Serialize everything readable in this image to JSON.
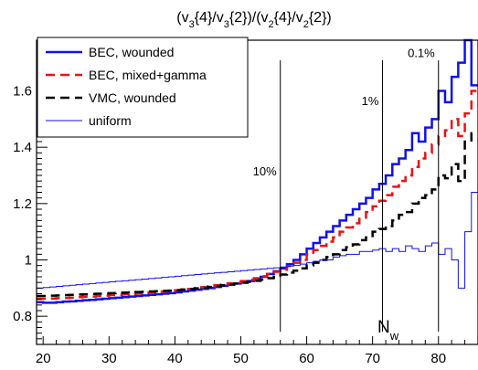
{
  "chart_data": {
    "type": "line",
    "title": {
      "base_open": "(v",
      "sub1": "3",
      "mid1": "{4}/v",
      "sub2": "3",
      "mid2": "{2})/(v",
      "sub3": "2",
      "mid3": "{4}/v",
      "sub4": "2",
      "end": "{2})"
    },
    "xlabel": {
      "base": "N",
      "sub": "w"
    },
    "ylabel": "",
    "xlim": [
      19,
      86
    ],
    "ylim": [
      0.7,
      1.78
    ],
    "x_ticks": [
      20,
      30,
      40,
      50,
      60,
      70,
      80
    ],
    "y_ticks": [
      0.8,
      1,
      1.2,
      1.4,
      1.6
    ],
    "grid": false,
    "legend_position": "top-left",
    "annotations": [
      {
        "text": "10%",
        "x": 56,
        "y_min": 0.745,
        "label_y": 1.3
      },
      {
        "text": "1%",
        "x": 71.5,
        "y_min": 0.745,
        "label_y": 1.55
      },
      {
        "text": "0.1%",
        "x": 80,
        "y_min": 0.745,
        "label_y": 1.72
      }
    ],
    "x_bins": [
      19,
      20,
      21,
      22,
      23,
      24,
      25,
      26,
      27,
      28,
      29,
      30,
      31,
      32,
      33,
      34,
      35,
      36,
      37,
      38,
      39,
      40,
      41,
      42,
      43,
      44,
      45,
      46,
      47,
      48,
      49,
      50,
      51,
      52,
      53,
      54,
      55,
      56,
      57,
      58,
      59,
      60,
      61,
      62,
      63,
      64,
      65,
      66,
      67,
      68,
      69,
      70,
      71,
      72,
      73,
      74,
      75,
      76,
      77,
      78,
      79,
      80,
      81,
      82,
      83,
      84,
      85,
      86
    ],
    "series": [
      {
        "name": "BEC, wounded",
        "color": "#1010ee",
        "dash": "solid",
        "width": 2.5,
        "values": [
          0.85,
          0.848,
          0.848,
          0.85,
          0.852,
          0.853,
          0.855,
          0.857,
          0.858,
          0.86,
          0.862,
          0.864,
          0.866,
          0.868,
          0.87,
          0.872,
          0.874,
          0.876,
          0.878,
          0.88,
          0.882,
          0.885,
          0.888,
          0.891,
          0.894,
          0.897,
          0.9,
          0.904,
          0.908,
          0.912,
          0.916,
          0.92,
          0.925,
          0.932,
          0.94,
          0.95,
          0.96,
          0.97,
          0.985,
          1.0,
          1.02,
          1.04,
          1.06,
          1.08,
          1.1,
          1.12,
          1.14,
          1.16,
          1.18,
          1.2,
          1.22,
          1.25,
          1.27,
          1.3,
          1.34,
          1.36,
          1.39,
          1.45,
          1.42,
          1.47,
          1.5,
          1.6,
          1.56,
          1.65,
          1.7,
          1.78,
          1.62,
          1.58
        ]
      },
      {
        "name": "BEC, mixed+gamma",
        "color": "#ee1010",
        "dash": "dashed",
        "width": 2.5,
        "values": [
          0.862,
          0.862,
          0.863,
          0.864,
          0.865,
          0.866,
          0.868,
          0.869,
          0.87,
          0.872,
          0.873,
          0.875,
          0.876,
          0.878,
          0.879,
          0.881,
          0.883,
          0.885,
          0.886,
          0.888,
          0.89,
          0.892,
          0.895,
          0.897,
          0.9,
          0.903,
          0.906,
          0.91,
          0.913,
          0.917,
          0.921,
          0.925,
          0.93,
          0.935,
          0.942,
          0.95,
          0.958,
          0.965,
          0.978,
          0.99,
          1.0,
          1.02,
          1.035,
          1.05,
          1.065,
          1.08,
          1.1,
          1.115,
          1.13,
          1.15,
          1.17,
          1.19,
          1.21,
          1.23,
          1.26,
          1.28,
          1.3,
          1.33,
          1.36,
          1.38,
          1.41,
          1.44,
          1.46,
          1.5,
          1.44,
          1.52,
          1.6,
          1.58
        ]
      },
      {
        "name": "VMC, wounded",
        "color": "#000000",
        "dash": "dashed",
        "width": 2.5,
        "values": [
          0.872,
          0.872,
          0.873,
          0.874,
          0.875,
          0.876,
          0.877,
          0.878,
          0.879,
          0.88,
          0.881,
          0.882,
          0.883,
          0.884,
          0.885,
          0.886,
          0.887,
          0.888,
          0.889,
          0.89,
          0.891,
          0.893,
          0.895,
          0.897,
          0.899,
          0.901,
          0.904,
          0.907,
          0.91,
          0.913,
          0.916,
          0.919,
          0.922,
          0.926,
          0.93,
          0.935,
          0.94,
          0.948,
          0.955,
          0.962,
          0.97,
          0.98,
          0.99,
          1.0,
          1.01,
          1.02,
          1.035,
          1.045,
          1.055,
          1.07,
          1.08,
          1.1,
          1.11,
          1.12,
          1.14,
          1.16,
          1.17,
          1.2,
          1.22,
          1.23,
          1.25,
          1.3,
          1.29,
          1.34,
          1.28,
          1.42,
          1.45,
          1.4
        ]
      },
      {
        "name": "uniform",
        "color": "#1010ee",
        "dash": "solid",
        "width": 1,
        "values": [
          0.9,
          0.902,
          0.904,
          0.906,
          0.908,
          0.91,
          0.912,
          0.914,
          0.916,
          0.918,
          0.92,
          0.922,
          0.924,
          0.926,
          0.928,
          0.93,
          0.932,
          0.934,
          0.936,
          0.938,
          0.94,
          0.942,
          0.944,
          0.946,
          0.948,
          0.95,
          0.952,
          0.954,
          0.956,
          0.958,
          0.96,
          0.962,
          0.964,
          0.966,
          0.968,
          0.97,
          0.972,
          0.975,
          0.978,
          0.98,
          0.985,
          0.99,
          0.995,
          1.0,
          1.0,
          1.01,
          1.015,
          1.02,
          1.02,
          1.03,
          1.03,
          1.035,
          1.04,
          1.03,
          1.04,
          1.03,
          1.05,
          1.04,
          1.03,
          1.05,
          1.06,
          1.02,
          1.04,
          1.0,
          0.9,
          1.1,
          1.24,
          1.2
        ]
      }
    ]
  }
}
